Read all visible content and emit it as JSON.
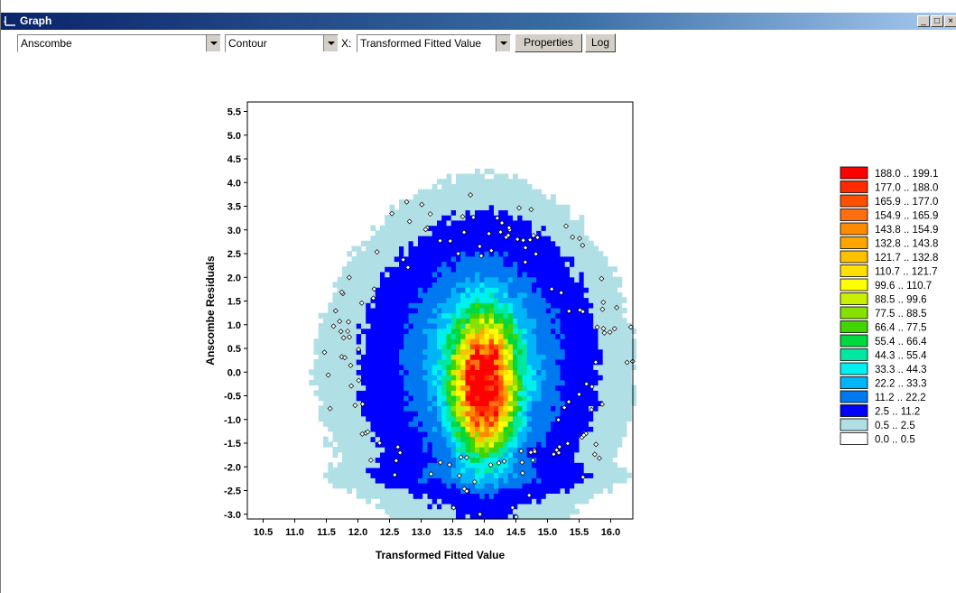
{
  "window": {
    "title": "Graph",
    "minimize_label": "_",
    "maximize_label": "□",
    "close_label": "×"
  },
  "toolbar": {
    "dataset_select": "Anscombe",
    "plot_type_select": "Contour",
    "x_label": "X:",
    "x_select": "Transformed Fitted Value",
    "properties_button": "Properties",
    "log_button": "Log"
  },
  "chart_data": {
    "type": "heatmap",
    "subtype": "contour",
    "xlabel": "Transformed Fitted Value",
    "ylabel": "Anscombe Residuals",
    "xlim": [
      10.25,
      16.35
    ],
    "ylim": [
      -3.1,
      5.7
    ],
    "x_ticks": [
      "10.5",
      "11.0",
      "11.5",
      "12.0",
      "12.5",
      "13.0",
      "13.5",
      "14.0",
      "14.5",
      "15.0",
      "15.5",
      "16.0"
    ],
    "y_ticks": [
      "5.5",
      "5.0",
      "4.5",
      "4.0",
      "3.5",
      "3.0",
      "2.5",
      "2.0",
      "1.5",
      "1.0",
      "0.5",
      "0.0",
      "-0.5",
      "-1.0",
      "-1.5",
      "-2.0",
      "-2.5",
      "-3.0"
    ],
    "density_peak": {
      "x": 14.0,
      "y": -0.3,
      "value": 199.1
    },
    "legend": [
      {
        "label": "188.0 .. 199.1",
        "color": "#ff0000"
      },
      {
        "label": "177.0 .. 188.0",
        "color": "#ff2a00"
      },
      {
        "label": "165.9 .. 177.0",
        "color": "#ff5000"
      },
      {
        "label": "154.9 .. 165.9",
        "color": "#ff6e10"
      },
      {
        "label": "143.8 .. 154.9",
        "color": "#ff8c00"
      },
      {
        "label": "132.8 .. 143.8",
        "color": "#ffa500"
      },
      {
        "label": "121.7 .. 132.8",
        "color": "#ffc000"
      },
      {
        "label": "110.7 .. 121.7",
        "color": "#ffe000"
      },
      {
        "label": "99.6 .. 110.7",
        "color": "#ffff00"
      },
      {
        "label": "88.5 .. 99.6",
        "color": "#c8f000"
      },
      {
        "label": "77.5 .. 88.5",
        "color": "#88e000"
      },
      {
        "label": "66.4 .. 77.5",
        "color": "#40d400"
      },
      {
        "label": "55.4 .. 66.4",
        "color": "#00d840"
      },
      {
        "label": "44.3 .. 55.4",
        "color": "#00e8a0"
      },
      {
        "label": "33.3 .. 44.3",
        "color": "#00f0f0"
      },
      {
        "label": "22.2 .. 33.3",
        "color": "#00b4f8"
      },
      {
        "label": "11.2 .. 22.2",
        "color": "#0078f0"
      },
      {
        "label": "2.5 .. 11.2",
        "color": "#0000ff"
      },
      {
        "label": "0.5 .. 2.5",
        "color": "#b0e0e6"
      },
      {
        "label": "0.0 .. 0.5",
        "color": "#ffffff"
      }
    ]
  }
}
